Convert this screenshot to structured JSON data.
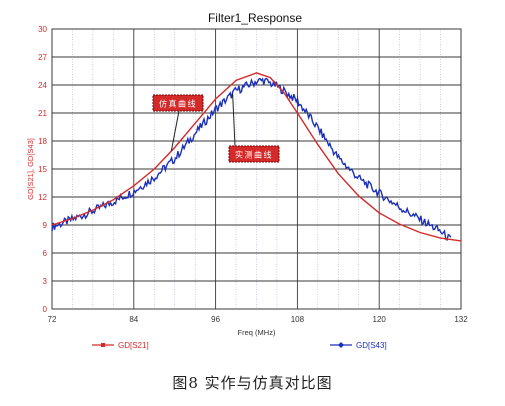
{
  "caption": "图8 实作与仿真对比图",
  "chart_data": {
    "type": "line",
    "title": "Filter1_Response",
    "xlabel": "Freq (MHz)",
    "ylabel": "GD[S21], GD[S43]",
    "xlim": [
      72,
      132
    ],
    "ylim": [
      0,
      30
    ],
    "xticks": [
      72,
      84,
      96,
      108,
      120,
      132
    ],
    "yticks": [
      0,
      3,
      6,
      9,
      12,
      15,
      18,
      21,
      24,
      27,
      30
    ],
    "grid": true,
    "legend_placement": "bottom",
    "series": [
      {
        "name": "GD[S21]",
        "color": "#d42a2a",
        "x": [
          72,
          75,
          78,
          81,
          84,
          87,
          90,
          93,
          96,
          99,
          102,
          104,
          106,
          108,
          111,
          114,
          117,
          120,
          123,
          126,
          129,
          132
        ],
        "y": [
          9.0,
          9.7,
          10.6,
          11.7,
          13.2,
          15.0,
          17.3,
          19.9,
          22.5,
          24.5,
          25.3,
          24.8,
          23.2,
          21.0,
          17.6,
          14.5,
          12.1,
          10.3,
          9.1,
          8.2,
          7.6,
          7.3
        ]
      },
      {
        "name": "GD[S43]",
        "color": "#1c2fb8",
        "x": [
          72,
          75,
          78,
          81,
          84,
          87,
          90,
          93,
          96,
          99,
          102,
          103,
          105,
          108,
          111,
          114,
          117,
          120,
          123,
          126,
          129,
          130.5
        ],
        "y": [
          8.8,
          9.6,
          10.5,
          11.5,
          12.6,
          14.1,
          16.1,
          18.8,
          21.4,
          23.4,
          24.4,
          24.5,
          23.9,
          22.3,
          19.4,
          16.2,
          14.0,
          12.4,
          10.9,
          9.6,
          8.3,
          7.4
        ]
      }
    ],
    "annotations": [
      {
        "text": "仿真曲线",
        "target_series": 0,
        "at_x": 89.5
      },
      {
        "text": "实测曲线",
        "target_series": 1,
        "at_x": 98.5
      }
    ]
  }
}
